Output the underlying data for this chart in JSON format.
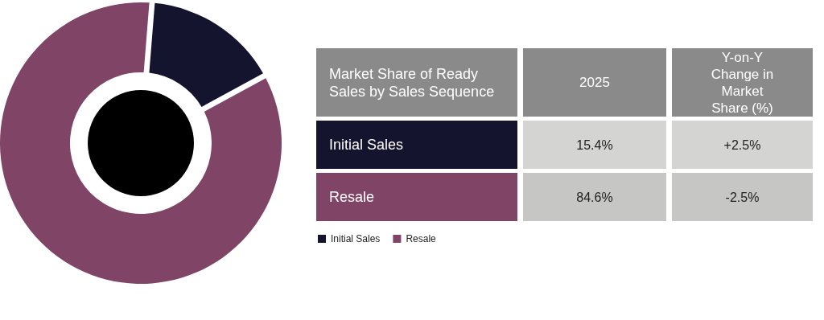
{
  "chart_data": {
    "type": "donut",
    "title": "Market Share of Ready Sales by Sales Sequence",
    "categories": [
      "Initial Sales",
      "Resale"
    ],
    "values": [
      15.4,
      84.6
    ],
    "colors": [
      "#14142e",
      "#804466"
    ],
    "annotations": [
      "2025",
      "Y-on-Y Change in Market Share (%)",
      "15.4%",
      "84.6%",
      "+2.5%",
      "-2.5%"
    ],
    "legend": "right"
  }
}
